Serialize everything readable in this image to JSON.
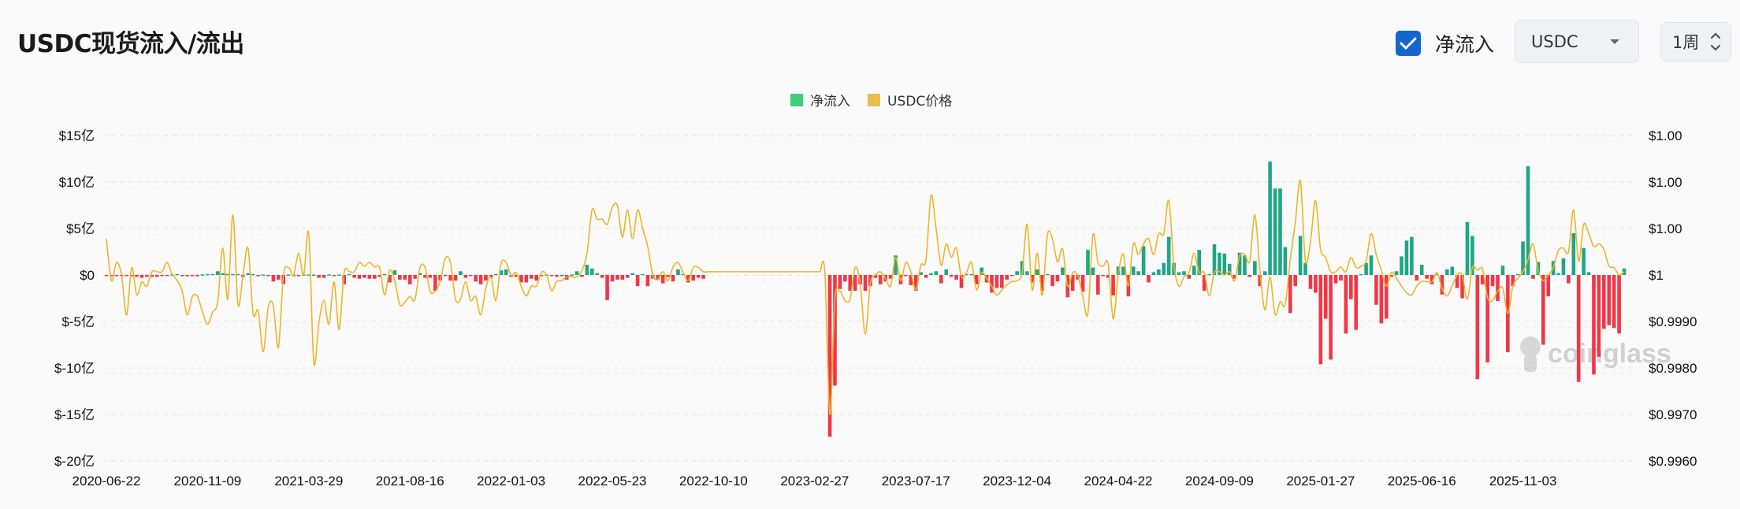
{
  "header": {
    "title": "USDC现货流入/流出",
    "checkbox_label": "净流入",
    "checkbox_checked": true,
    "coin_select": "USDC",
    "period_select": "1周"
  },
  "colors": {
    "accent": "#1366d0",
    "inflow_bar": "#1ea784",
    "outflow_bar": "#f23645",
    "price_line": "#f0b429",
    "legend_net": "#3ecf7a",
    "legend_price": "#ebbd4e"
  },
  "watermark": "coinglass",
  "chart_data": {
    "type": "bar+line",
    "legend": [
      {
        "name": "净流入"
      },
      {
        "name": "USDC价格"
      }
    ],
    "legend_position": "top-center",
    "grid": true,
    "x_tick_labels": [
      "2020-06-22",
      "2020-11-09",
      "2021-03-29",
      "2021-08-16",
      "2022-01-03",
      "2022-05-23",
      "2022-10-10",
      "2023-02-27",
      "2023-07-17",
      "2023-12-04",
      "2024-04-22",
      "2024-09-09",
      "2025-01-27",
      "2025-06-16",
      "2025-11-03"
    ],
    "y_left": {
      "ylim": [
        -20,
        15
      ],
      "ticks": [
        15,
        10,
        5,
        0,
        -5,
        -10,
        -15,
        -20
      ],
      "tick_labels": [
        "$15亿",
        "$10亿",
        "$5亿",
        "$0",
        "$-5亿",
        "$-10亿",
        "$-15亿",
        "$-20亿"
      ],
      "unit": "亿"
    },
    "y_right": {
      "ylim": [
        0.996,
        1.003
      ],
      "ticks": [
        1.003,
        1.002,
        1.001,
        1.0,
        0.999,
        0.998,
        0.997,
        0.996
      ],
      "tick_labels": [
        "$1.00",
        "$1.00",
        "$1.00",
        "$1",
        "$0.9990",
        "$0.9980",
        "$0.9970",
        "$0.9960"
      ]
    },
    "series": [
      {
        "name": "净流入",
        "type": "bar",
        "axis": "left",
        "values": [
          -0.1,
          -0.1,
          -0.1,
          -0.05,
          -0.05,
          -0.1,
          -0.2,
          -0.3,
          -0.2,
          -0.2,
          -0.2,
          -0.1,
          -0.05,
          0.05,
          0.1,
          -0.1,
          -0.1,
          -0.1,
          -0.15,
          0.05,
          0.1,
          0.1,
          0.4,
          0.2,
          0.1,
          0.1,
          0.1,
          -0.2,
          0.2,
          0.1,
          -0.1,
          0.05,
          -0.05,
          -0.7,
          -0.5,
          -1.0,
          0.05,
          -0.1,
          -0.1,
          0.05,
          0.05,
          0.05,
          -0.3,
          -0.3,
          0.05,
          -0.1,
          0.05,
          -1.0,
          0.1,
          -0.3,
          -0.4,
          -0.3,
          -0.4,
          -0.4,
          -0.2,
          0.1,
          -0.8,
          0.5,
          -0.5,
          -0.5,
          -1.0,
          -0.4,
          0.2,
          -0.3,
          -0.3,
          -1.7,
          -0.6,
          -0.05,
          -0.6,
          -0.6,
          0.4,
          -0.3,
          -0.1,
          -0.7,
          -1.0,
          -0.6,
          -0.3,
          0.1,
          0.5,
          0.6,
          -0.2,
          -0.2,
          -0.8,
          -0.8,
          -0.4,
          -0.6,
          -0.1,
          0.05,
          -0.05,
          -0.2,
          -0.05,
          -0.5,
          0.05,
          0.4,
          -0.2,
          1.1,
          0.7,
          0.2,
          -0.3,
          -2.7,
          -0.7,
          -0.5,
          -0.5,
          -0.3,
          0.2,
          -1.2,
          0.1,
          -1.2,
          -0.4,
          -0.5,
          -0.9,
          -0.2,
          -0.7,
          0.6,
          0.1,
          -0.8,
          -0.6,
          -0.3,
          -0.4,
          0,
          0,
          0,
          0,
          0,
          0,
          0,
          0,
          0,
          0,
          0,
          0,
          0,
          0,
          0,
          0,
          0,
          0,
          0,
          0,
          0,
          0,
          0,
          0,
          -17.4,
          -11.9,
          -1.5,
          -0.7,
          -1.7,
          -1.7,
          -1.0,
          -1.7,
          -1.2,
          -0.3,
          -1.0,
          -0.7,
          -0.4,
          2.1,
          -1.0,
          -0.1,
          -1.1,
          -1.7,
          0.3,
          -0.3,
          0.2,
          0.4,
          -0.9,
          0.6,
          -0.2,
          -0.5,
          -1.4,
          0.1,
          0.1,
          -1.0,
          0.8,
          -0.8,
          -1.9,
          -1.4,
          -1.4,
          -0.5,
          -0.1,
          0.4,
          1.5,
          0.4,
          -0.8,
          0.6,
          -1.7,
          0.1,
          -1.2,
          -0.7,
          0.8,
          -2.4,
          -1.7,
          -0.5,
          -1.8,
          2.7,
          0.8,
          -2.1,
          -0.1,
          -0.3,
          -2.2,
          0.9,
          0.9,
          -2.3,
          0.9,
          0.4,
          3.1,
          -0.8,
          0.3,
          0.6,
          1.3,
          4.1,
          1.3,
          0.3,
          0.4,
          -0.4,
          1.0,
          2.7,
          -1.7,
          0.1,
          3.3,
          2.4,
          2.3,
          1.2,
          -0.4,
          2.4,
          2.1,
          -0.2,
          1.5,
          -1.2,
          0.4,
          12.2,
          9.3,
          9.3,
          3.0,
          -4.1,
          -1.2,
          4.2,
          1.3,
          -1.5,
          -1.9,
          -9.6,
          -4.7,
          -9.1,
          -0.9,
          -0.6,
          -6.3,
          -2.6,
          -5.9,
          0.1,
          1.3,
          2.1,
          -3.2,
          -5.2,
          -4.7,
          -0.2,
          0.4,
          2.0,
          3.7,
          4.1,
          -0.6,
          1.1,
          -0.4,
          -1.0,
          0.1,
          -2.1,
          0.6,
          0.9,
          -1.4,
          -2.5,
          5.7,
          4.2,
          -11.2,
          -1.0,
          -9.4,
          -1.2,
          -2.8,
          1.0,
          -8.3,
          -1.2,
          0.1,
          3.6,
          11.7,
          -0.4,
          1.4,
          -7.5,
          -2.3,
          1.5,
          0.2,
          1.8,
          -0.9,
          4.5,
          -11.5,
          2.9,
          0.3,
          -10.7,
          -8.8,
          -5.8,
          -5.4,
          -5.7,
          -6.3,
          0.7
        ]
      },
      {
        "name": "USDC价格",
        "type": "line",
        "axis": "right",
        "values": [
          1.00078,
          0.99988,
          1.00027,
          1.0,
          0.99914,
          1.00016,
          0.99957,
          0.99985,
          0.99976,
          1.00007,
          1.00007,
          1.00007,
          1.00027,
          1.00002,
          0.99988,
          0.99965,
          0.99914,
          0.99954,
          0.99954,
          0.9992,
          0.99894,
          0.9992,
          0.99942,
          1.00058,
          0.99948,
          1.00129,
          0.99937,
          0.99999,
          1.00058,
          0.99917,
          0.99923,
          0.99835,
          0.99931,
          0.99934,
          0.99844,
          0.99999,
          1.00016,
          1.0,
          1.00047,
          1.0,
          1.00089,
          0.99812,
          0.99897,
          0.99945,
          0.99894,
          0.99985,
          0.99883,
          1.00005,
          1.00007,
          1.00007,
          1.00027,
          1.00019,
          1.00027,
          1.00017,
          1.00016,
          0.99957,
          1.0001,
          0.99988,
          0.99936,
          0.99942,
          0.99954,
          0.99947,
          1.00016,
          1.00016,
          0.99965,
          0.99965,
          0.99988,
          1.00036,
          1.00027,
          0.99948,
          0.99948,
          0.99985,
          0.99945,
          0.99954,
          0.99914,
          0.99971,
          0.99996,
          0.99945,
          1.00024,
          1.00027,
          0.99999,
          1.00005,
          0.99976,
          0.99955,
          0.99976,
          0.99976,
          1.00006,
          1.0,
          0.99966,
          0.99986,
          0.99988,
          0.99996,
          0.99996,
          0.99996,
          1.0001,
          1.00047,
          1.0014,
          1.0012,
          1.0012,
          1.00109,
          1.00146,
          1.00149,
          1.00081,
          1.0014,
          1.00078,
          1.0014,
          1.001,
          1.00061,
          1.0,
          0.9999,
          1.00007,
          0.99988,
          1.00017,
          1.00027,
          1.00005,
          0.99988,
          1.00016,
          1.00016,
          1.00007,
          1.00007,
          1.00007,
          1.00007,
          1.00007,
          1.00007,
          1.00007,
          1.00007,
          1.00007,
          1.00007,
          1.00007,
          1.00007,
          1.00007,
          1.00007,
          1.00007,
          1.00007,
          1.00007,
          1.00007,
          1.00007,
          1.00007,
          1.00007,
          1.00007,
          1.00007,
          1.00007,
          1.00007,
          0.997,
          0.99948,
          0.99965,
          0.99945,
          0.99948,
          1.00016,
          0.99982,
          0.99873,
          0.99982,
          1.0,
          1.00007,
          0.99993,
          0.99976,
          1.00038,
          0.99988,
          1.00027,
          1.00007,
          0.99968,
          1.00021,
          1.00033,
          1.00171,
          1.001,
          1.00021,
          1.00067,
          1.00038,
          1.00058,
          0.99996,
          1.00005,
          1.00027,
          0.99968,
          1.00005,
          0.99993,
          0.99976,
          0.99957,
          0.99968,
          0.99979,
          0.99986,
          0.99988,
          1.00005,
          1.00109,
          0.99968,
          1.00047,
          0.99957,
          1.00086,
          1.00078,
          1.00028,
          1.00056,
          0.99976,
          1.00005,
          0.99999,
          0.99954,
          0.99917,
          1.00086,
          1.00027,
          1.00019,
          1.00024,
          0.99906,
          1.0,
          1.00045,
          0.99976,
          1.00067,
          1.00044,
          1.00067,
          1.00078,
          1.00044,
          1.00089,
          1.00089,
          1.0016,
          1.00021,
          0.99976,
          0.99996,
          1.00005,
          1.00047,
          1.00005,
          1.00005,
          0.99955,
          1.00005,
          1.00007,
          1.0,
          1.00007,
          0.99988,
          1.00041,
          1.00044,
          1.0003,
          1.00129,
          1.0001,
          0.99925,
          0.99996,
          0.99915,
          0.99942,
          0.99937,
          1.00033,
          1.00112,
          1.00202,
          1.0003,
          1.00072,
          1.0016,
          1.00055,
          1.00038,
          1.00007,
          1.00007,
          1.00017,
          1.00007,
          1.00038,
          1.00016,
          1.00019,
          1.0003,
          1.00089,
          1.00044,
          1.0001,
          0.99976,
          1.00006,
          0.99993,
          0.99976,
          0.99962,
          0.99957,
          0.99976,
          0.99986,
          0.99986,
          0.99985,
          1.00005,
          0.99971,
          0.99955,
          0.99976,
          1.0,
          1.0,
          0.99948,
          1.00016,
          1.0001,
          1.00013,
          0.99951,
          0.99945,
          0.99965,
          0.99972,
          0.99917,
          0.99976,
          0.99993,
          1.00007,
          1.00033,
          1.00067,
          1.0001,
          0.99988,
          1.0,
          1.00016,
          1.00053,
          1.00058,
          1.0005,
          1.0014,
          1.0003,
          1.00109,
          1.00089,
          1.00061,
          1.00067,
          1.00055,
          1.00019,
          1.00016,
          1.0,
          1.00007
        ]
      }
    ]
  }
}
